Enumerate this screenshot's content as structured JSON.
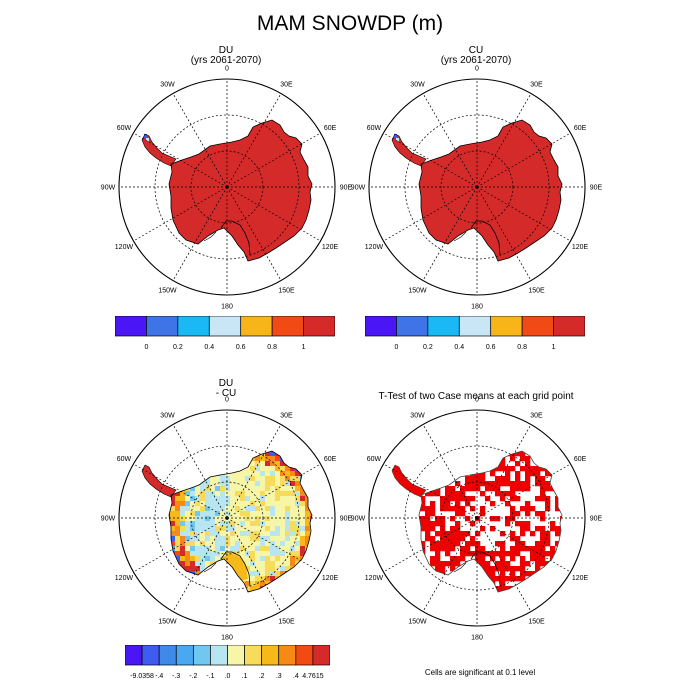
{
  "title": "MAM SNOWDP (m)",
  "panels": [
    {
      "title_line1": "DU",
      "title_line2": "(yrs 2061-2070)"
    },
    {
      "title_line1": "CU",
      "title_line2": "(yrs 2061-2070)"
    },
    {
      "title_line1": "DU",
      "title_line2": "- CU"
    },
    {
      "title_line1": "T-Test of two Case means at each grid point",
      "title_line2": ""
    }
  ],
  "longitude_labels": {
    "0": "0",
    "30E": "30E",
    "60E": "60E",
    "90E": "90E",
    "120E": "120E",
    "150E": "150E",
    "180": "180",
    "150W": "150W",
    "120W": "120W",
    "90W": "90W",
    "60W": "60W",
    "30W": "30W"
  },
  "colorbar_top": {
    "colors": [
      "#4a16f5",
      "#3f73e8",
      "#1ab8f5",
      "#c8e6f5",
      "#f7b51a",
      "#f24a14",
      "#d42a2a"
    ],
    "labels": [
      "0",
      "0.2",
      "0.4",
      "0.6",
      "0.8",
      "1"
    ]
  },
  "colorbar_bottom": {
    "colors": [
      "#4a16f5",
      "#3f5cf0",
      "#3f8ae8",
      "#4aa8f0",
      "#70c8f0",
      "#b8e6f0",
      "#f7f5a8",
      "#f7dc5c",
      "#f7b81a",
      "#f78a14",
      "#f24a14",
      "#d42a2a"
    ],
    "labels": [
      "-9.0358",
      "-.4",
      "-.3",
      "-.2",
      "-.1",
      ".0",
      ".1",
      ".2",
      ".3",
      ".4",
      "4.7615"
    ]
  },
  "note": "Cells are significant at 0.1 level",
  "colors": {
    "snow_max": "#d42a2a",
    "significant": "#ee0000"
  }
}
